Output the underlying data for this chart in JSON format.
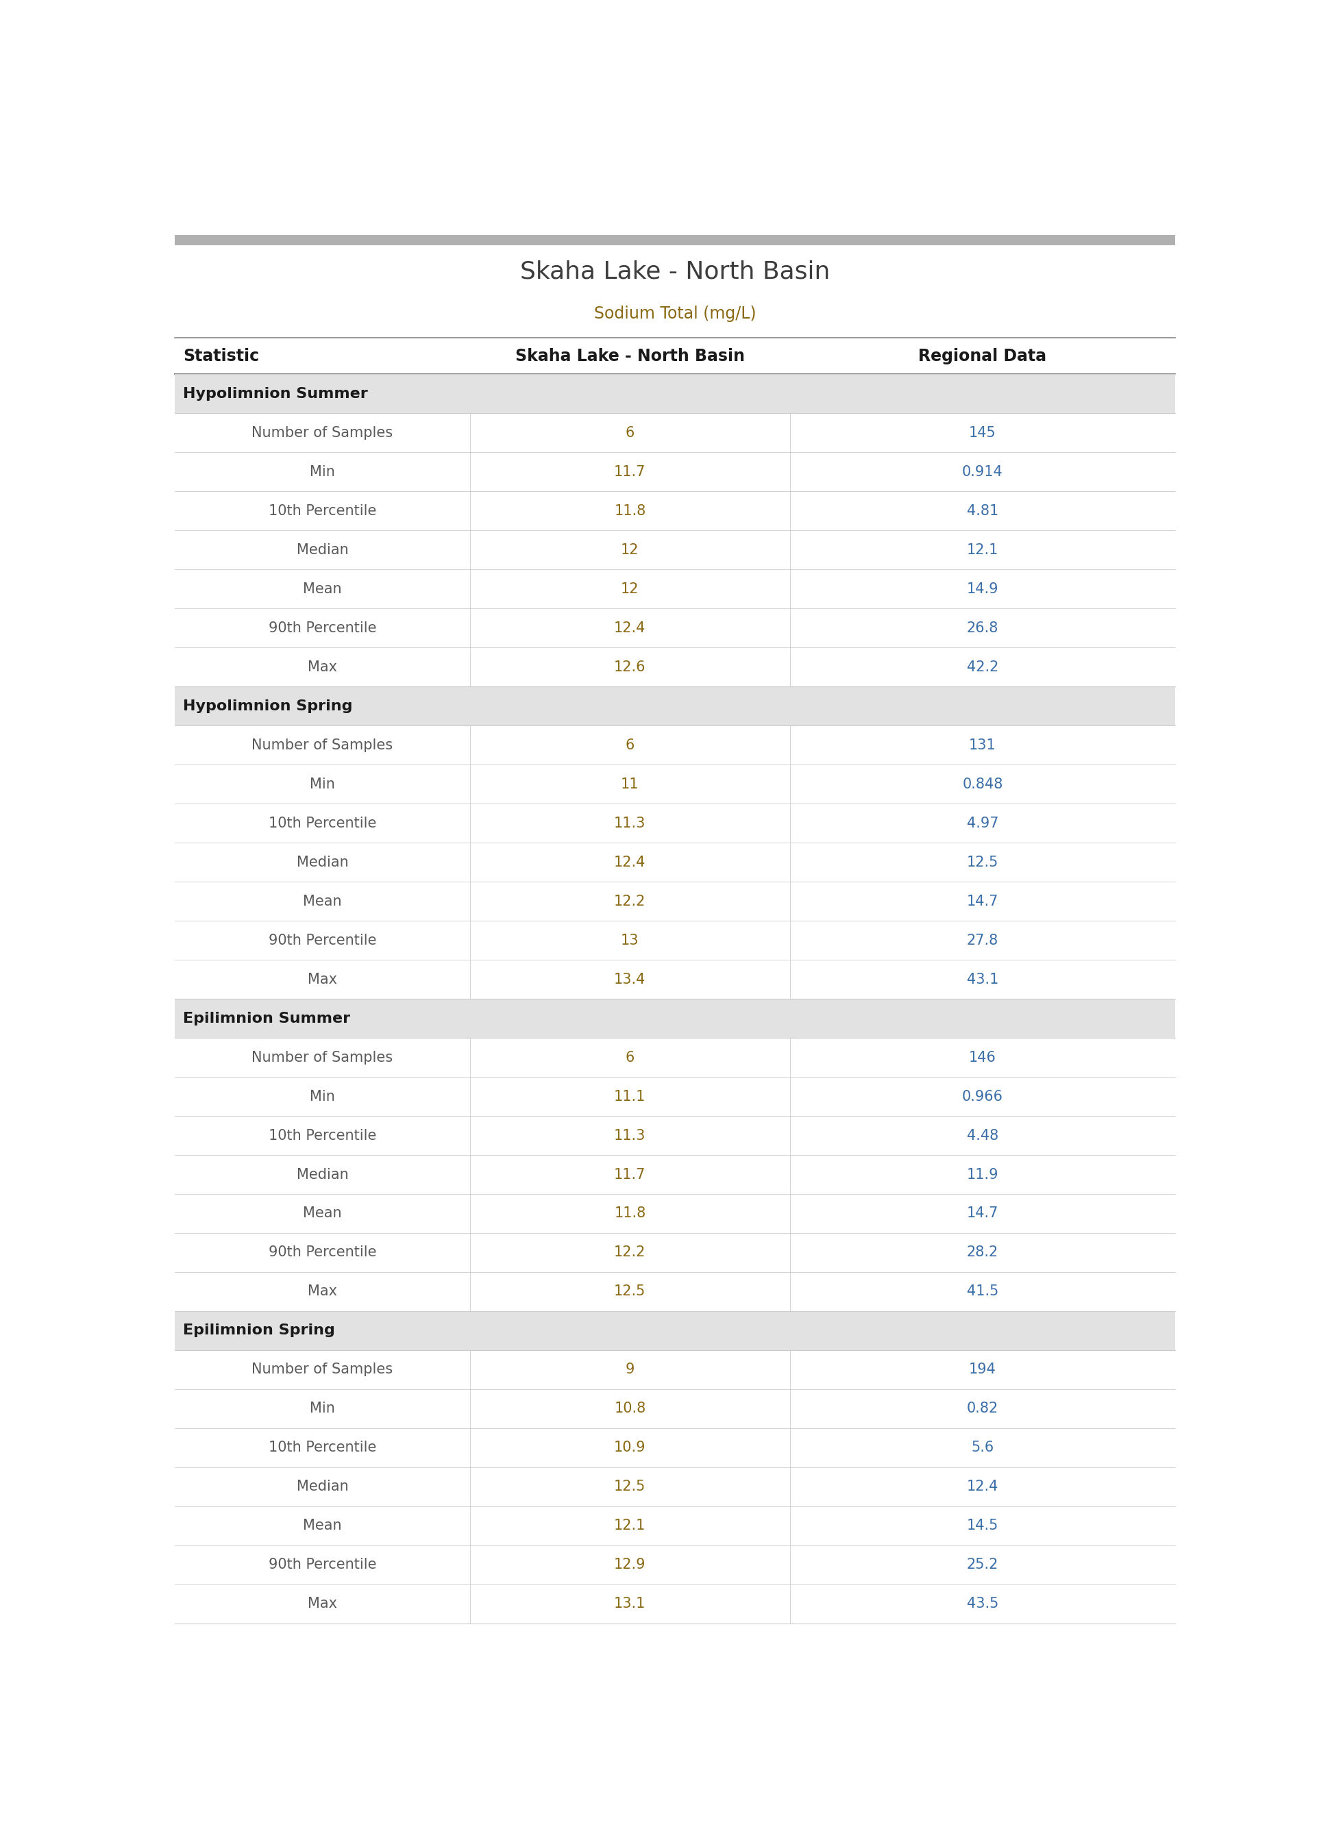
{
  "title": "Skaha Lake - North Basin",
  "subtitle": "Sodium Total (mg/L)",
  "col_headers": [
    "Statistic",
    "Skaha Lake - North Basin",
    "Regional Data"
  ],
  "sections": [
    {
      "name": "Hypolimnion Summer",
      "rows": [
        [
          "Number of Samples",
          "6",
          "145"
        ],
        [
          "Min",
          "11.7",
          "0.914"
        ],
        [
          "10th Percentile",
          "11.8",
          "4.81"
        ],
        [
          "Median",
          "12",
          "12.1"
        ],
        [
          "Mean",
          "12",
          "14.9"
        ],
        [
          "90th Percentile",
          "12.4",
          "26.8"
        ],
        [
          "Max",
          "12.6",
          "42.2"
        ]
      ]
    },
    {
      "name": "Hypolimnion Spring",
      "rows": [
        [
          "Number of Samples",
          "6",
          "131"
        ],
        [
          "Min",
          "11",
          "0.848"
        ],
        [
          "10th Percentile",
          "11.3",
          "4.97"
        ],
        [
          "Median",
          "12.4",
          "12.5"
        ],
        [
          "Mean",
          "12.2",
          "14.7"
        ],
        [
          "90th Percentile",
          "13",
          "27.8"
        ],
        [
          "Max",
          "13.4",
          "43.1"
        ]
      ]
    },
    {
      "name": "Epilimnion Summer",
      "rows": [
        [
          "Number of Samples",
          "6",
          "146"
        ],
        [
          "Min",
          "11.1",
          "0.966"
        ],
        [
          "10th Percentile",
          "11.3",
          "4.48"
        ],
        [
          "Median",
          "11.7",
          "11.9"
        ],
        [
          "Mean",
          "11.8",
          "14.7"
        ],
        [
          "90th Percentile",
          "12.2",
          "28.2"
        ],
        [
          "Max",
          "12.5",
          "41.5"
        ]
      ]
    },
    {
      "name": "Epilimnion Spring",
      "rows": [
        [
          "Number of Samples",
          "9",
          "194"
        ],
        [
          "Min",
          "10.8",
          "0.82"
        ],
        [
          "10th Percentile",
          "10.9",
          "5.6"
        ],
        [
          "Median",
          "12.5",
          "12.4"
        ],
        [
          "Mean",
          "12.1",
          "14.5"
        ],
        [
          "90th Percentile",
          "12.9",
          "25.2"
        ],
        [
          "Max",
          "13.1",
          "43.5"
        ]
      ]
    }
  ],
  "title_color": "#3D3D3D",
  "subtitle_color": "#8B6914",
  "header_text_color": "#1a1a1a",
  "section_bg_color": "#E2E2E2",
  "section_text_color": "#1a1a1a",
  "statistic_col_color": "#5a5a5a",
  "data_color_col2": "#8B6914",
  "data_color_col3": "#3A6EA8",
  "row_bg_white": "#FFFFFF",
  "border_color": "#CCCCCC",
  "top_border_color": "#AAAAAA",
  "header_border_color": "#888888",
  "figsize": [
    19.22,
    26.86
  ]
}
